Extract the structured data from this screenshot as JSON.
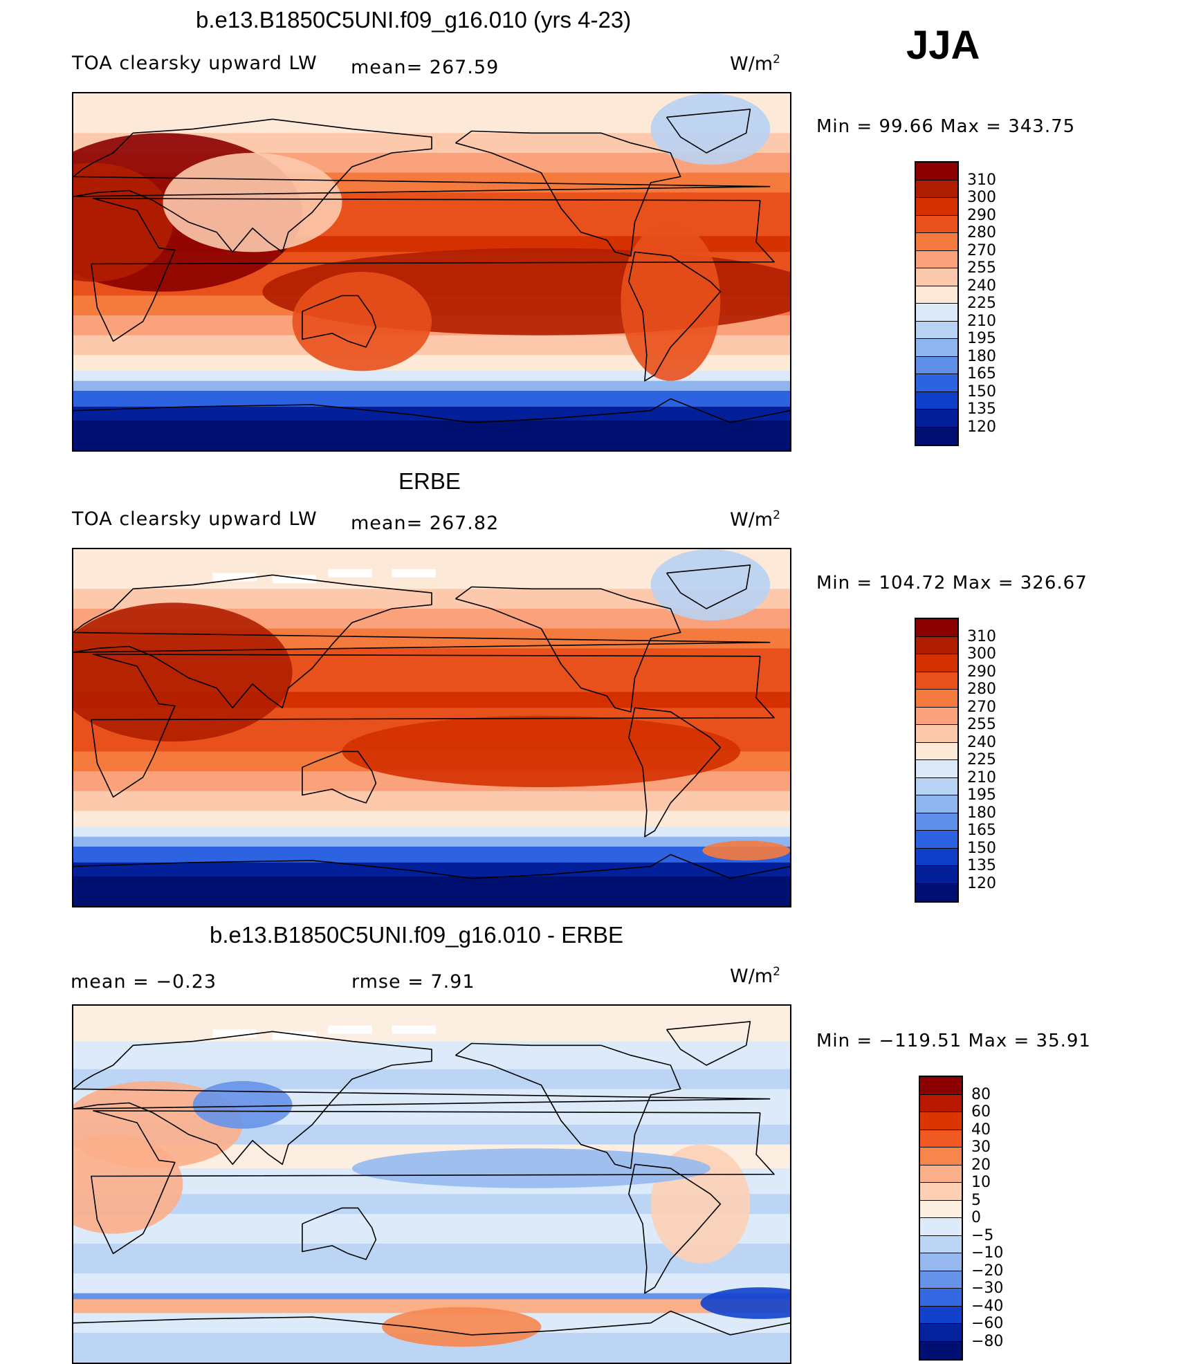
{
  "season": "JJA",
  "panels": [
    {
      "title": "b.e13.B1850C5UNI.f09_g16.010 (yrs 4-23)",
      "subtitle_left": "TOA clearsky upward LW",
      "subtitle_center": "mean= 267.59",
      "units": "W/m",
      "units_exp": "2",
      "minmax": "Min =   99.66 Max = 343.75",
      "colorbar": {
        "labels": [
          "310",
          "300",
          "290",
          "280",
          "270",
          "255",
          "240",
          "225",
          "210",
          "195",
          "180",
          "165",
          "150",
          "135",
          "120"
        ],
        "colors": [
          "#8b0000",
          "#b01e00",
          "#d43000",
          "#e8501c",
          "#f57a3e",
          "#f9a27c",
          "#fcc9ac",
          "#fde9d8",
          "#dce9f8",
          "#b8d2f3",
          "#8fb5ee",
          "#5f8fe8",
          "#2d63e0",
          "#0f3fc8",
          "#03209a",
          "#001070"
        ]
      }
    },
    {
      "title": "ERBE",
      "subtitle_left": "TOA clearsky upward LW",
      "subtitle_center": "mean= 267.82",
      "units": "W/m",
      "units_exp": "2",
      "minmax": "Min = 104.72 Max = 326.67",
      "colorbar": {
        "labels": [
          "310",
          "300",
          "290",
          "280",
          "270",
          "255",
          "240",
          "225",
          "210",
          "195",
          "180",
          "165",
          "150",
          "135",
          "120"
        ],
        "colors": [
          "#8b0000",
          "#b01e00",
          "#d43000",
          "#e8501c",
          "#f57a3e",
          "#f9a27c",
          "#fcc9ac",
          "#fde9d8",
          "#dce9f8",
          "#b8d2f3",
          "#8fb5ee",
          "#5f8fe8",
          "#2d63e0",
          "#0f3fc8",
          "#03209a",
          "#001070"
        ]
      }
    },
    {
      "title": "b.e13.B1850C5UNI.f09_g16.010 - ERBE",
      "subtitle_left": "mean =   −0.23",
      "subtitle_center": "rmse =    7.91",
      "units": "W/m",
      "units_exp": "2",
      "minmax": "Min = −119.51 Max =  35.91",
      "colorbar": {
        "labels": [
          "80",
          "60",
          "40",
          "30",
          "20",
          "10",
          "5",
          "0",
          "−5",
          "−10",
          "−20",
          "−30",
          "−40",
          "−60",
          "−80"
        ],
        "colors": [
          "#8b0000",
          "#b81800",
          "#dc3600",
          "#f05a22",
          "#f7864e",
          "#fbae8a",
          "#fdd0b6",
          "#fdeee2",
          "#dceaf9",
          "#bcd5f4",
          "#95b9ef",
          "#6693e9",
          "#3468e1",
          "#1242cc",
          "#04229e",
          "#001070"
        ]
      }
    }
  ]
}
